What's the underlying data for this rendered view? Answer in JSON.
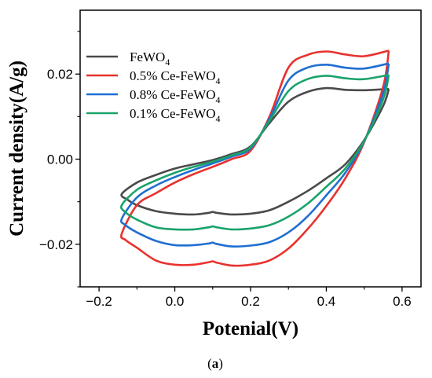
{
  "chart_data": {
    "type": "line",
    "xlabel": "Potenial(V)",
    "ylabel": "Current density(A/g)",
    "xlim": [
      -0.25,
      0.65
    ],
    "ylim": [
      -0.03,
      0.035
    ],
    "xticks": [
      -0.2,
      0.0,
      0.2,
      0.4,
      0.6
    ],
    "xtick_labels": [
      "−0.2",
      "0.0",
      "0.2",
      "0.4",
      "0.6"
    ],
    "yticks": [
      -0.02,
      0.0,
      0.02
    ],
    "ytick_labels": [
      "−0.02",
      "0.00",
      "0.02"
    ],
    "legend_position": "top-left",
    "caption_label": "a",
    "series": [
      {
        "name": "FeWO",
        "name_sub": "4",
        "color": "#4a4a4a",
        "x": [
          0.565,
          0.5,
          0.45,
          0.4,
          0.35,
          0.3,
          0.25,
          0.2,
          0.15,
          0.1,
          0.05,
          0.0,
          -0.05,
          -0.1,
          -0.14,
          -0.125,
          -0.1,
          -0.05,
          0.0,
          0.05,
          0.09,
          0.1,
          0.11,
          0.15,
          0.2,
          0.25,
          0.3,
          0.35,
          0.4,
          0.45,
          0.5,
          0.55,
          0.565
        ],
        "y": [
          0.0165,
          0.0162,
          0.0163,
          0.0167,
          0.0158,
          0.0135,
          0.0085,
          0.003,
          0.0012,
          -0.0002,
          -0.0012,
          -0.0022,
          -0.0037,
          -0.0055,
          -0.0082,
          -0.0095,
          -0.0108,
          -0.0122,
          -0.0128,
          -0.013,
          -0.0126,
          -0.0124,
          -0.0126,
          -0.013,
          -0.0128,
          -0.012,
          -0.01,
          -0.0075,
          -0.0045,
          -0.0012,
          0.0045,
          0.0125,
          0.0165
        ]
      },
      {
        "name": "0.5% Ce-FeWO",
        "name_sub": "4",
        "color": "#e8322e",
        "x": [
          0.565,
          0.5,
          0.45,
          0.4,
          0.35,
          0.3,
          0.25,
          0.2,
          0.15,
          0.1,
          0.05,
          0.0,
          -0.05,
          -0.1,
          -0.14,
          -0.13,
          -0.1,
          -0.05,
          0.0,
          0.05,
          0.09,
          0.1,
          0.11,
          0.15,
          0.2,
          0.25,
          0.3,
          0.35,
          0.4,
          0.45,
          0.5,
          0.55,
          0.565
        ],
        "y": [
          0.0255,
          0.0242,
          0.0246,
          0.0253,
          0.0245,
          0.0215,
          0.01,
          0.002,
          0.0,
          -0.0018,
          -0.0035,
          -0.0055,
          -0.008,
          -0.0108,
          -0.0175,
          -0.019,
          -0.0208,
          -0.0238,
          -0.0248,
          -0.0248,
          -0.0242,
          -0.024,
          -0.0243,
          -0.025,
          -0.0248,
          -0.0238,
          -0.021,
          -0.0165,
          -0.011,
          -0.0045,
          0.004,
          0.017,
          0.0255
        ]
      },
      {
        "name": "0.8% Ce-FeWO",
        "name_sub": "4",
        "color": "#1f6fd1",
        "x": [
          0.565,
          0.5,
          0.45,
          0.4,
          0.35,
          0.3,
          0.25,
          0.2,
          0.15,
          0.1,
          0.05,
          0.0,
          -0.05,
          -0.1,
          -0.14,
          -0.13,
          -0.1,
          -0.05,
          0.0,
          0.05,
          0.09,
          0.1,
          0.11,
          0.15,
          0.2,
          0.25,
          0.3,
          0.35,
          0.4,
          0.45,
          0.5,
          0.55,
          0.565
        ],
        "y": [
          0.0225,
          0.0213,
          0.0215,
          0.0222,
          0.0215,
          0.0185,
          0.0095,
          0.0025,
          0.0006,
          -0.001,
          -0.0025,
          -0.0042,
          -0.0062,
          -0.009,
          -0.014,
          -0.0155,
          -0.0172,
          -0.0192,
          -0.0202,
          -0.0202,
          -0.0198,
          -0.0196,
          -0.0199,
          -0.0205,
          -0.0203,
          -0.0195,
          -0.0172,
          -0.0135,
          -0.0085,
          -0.0032,
          0.0042,
          0.0155,
          0.0225
        ]
      },
      {
        "name": "0.1% Ce-FeWO",
        "name_sub": "4",
        "color": "#1aa36a",
        "x": [
          0.565,
          0.5,
          0.45,
          0.4,
          0.35,
          0.3,
          0.25,
          0.2,
          0.15,
          0.1,
          0.05,
          0.0,
          -0.05,
          -0.1,
          -0.14,
          -0.13,
          -0.1,
          -0.05,
          0.0,
          0.05,
          0.09,
          0.1,
          0.11,
          0.15,
          0.2,
          0.25,
          0.3,
          0.35,
          0.4,
          0.45,
          0.5,
          0.55,
          0.565
        ],
        "y": [
          0.0198,
          0.0188,
          0.019,
          0.0196,
          0.0188,
          0.016,
          0.009,
          0.0028,
          0.0009,
          -0.0006,
          -0.0018,
          -0.0032,
          -0.005,
          -0.0072,
          -0.0108,
          -0.0125,
          -0.0142,
          -0.016,
          -0.0165,
          -0.0165,
          -0.016,
          -0.0158,
          -0.016,
          -0.0165,
          -0.0163,
          -0.0155,
          -0.0135,
          -0.0105,
          -0.0065,
          -0.0022,
          0.0043,
          0.014,
          0.0198
        ]
      }
    ]
  }
}
